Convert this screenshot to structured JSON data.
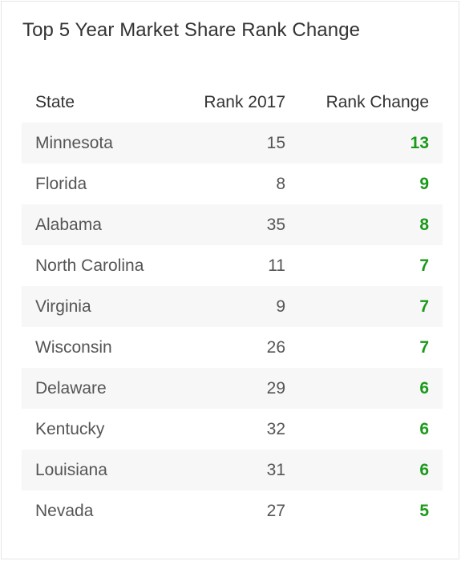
{
  "chart_data": {
    "type": "table",
    "title": "Top 5 Year Market Share Rank Change",
    "columns": [
      "State",
      "Rank 2017",
      "Rank Change"
    ],
    "rows": [
      {
        "state": "Minnesota",
        "rank_2017": "15",
        "rank_change": "13"
      },
      {
        "state": "Florida",
        "rank_2017": "8",
        "rank_change": "9"
      },
      {
        "state": "Alabama",
        "rank_2017": "35",
        "rank_change": "8"
      },
      {
        "state": "North Carolina",
        "rank_2017": "11",
        "rank_change": "7"
      },
      {
        "state": "Virginia",
        "rank_2017": "9",
        "rank_change": "7"
      },
      {
        "state": "Wisconsin",
        "rank_2017": "26",
        "rank_change": "7"
      },
      {
        "state": "Delaware",
        "rank_2017": "29",
        "rank_change": "6"
      },
      {
        "state": "Kentucky",
        "rank_2017": "32",
        "rank_change": "6"
      },
      {
        "state": "Louisiana",
        "rank_2017": "31",
        "rank_change": "6"
      },
      {
        "state": "Nevada",
        "rank_2017": "27",
        "rank_change": "5"
      }
    ]
  },
  "colors": {
    "change_positive": "#1a9a1a",
    "row_alt_background": "#f7f7f7"
  }
}
